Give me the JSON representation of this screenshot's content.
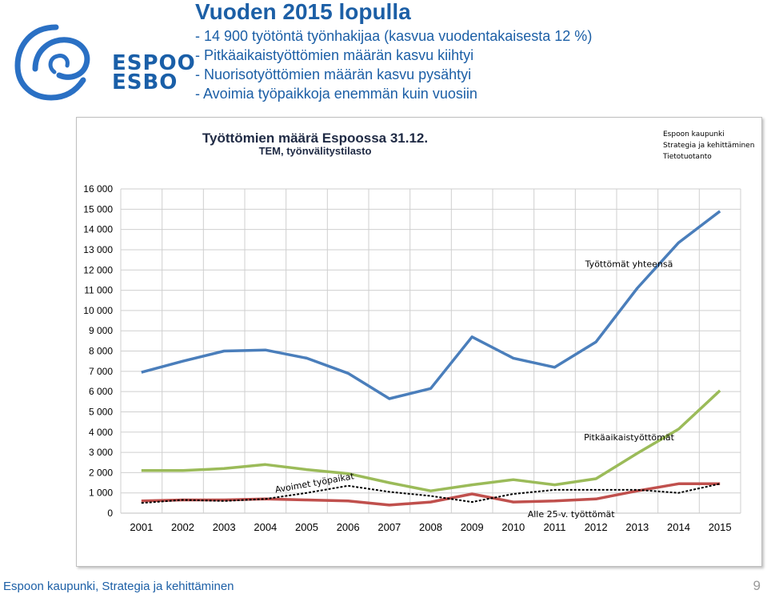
{
  "logo": {
    "line1": "ESPOO",
    "line2": "ESBO"
  },
  "header": {
    "title": "Vuoden 2015 lopulla",
    "bullets": [
      "- 14 900 työtöntä työnhakijaa (kasvua vuodentakaisesta 12 %)",
      "- Pitkäaikaistyöttömien määrän kasvu kiihtyi",
      "- Nuorisotyöttömien määrän kasvu pysähtyi",
      "- Avoimia työpaikkoja enemmän kuin vuosiin"
    ]
  },
  "source": {
    "line1": "Espoon kaupunki",
    "line2": "Strategia ja kehittäminen",
    "line3": "Tietotuotanto"
  },
  "chart_data": {
    "type": "line",
    "title": "Työttömien määrä Espoossa 31.12.",
    "subtitle": "TEM, työnvälitystilasto",
    "xlabel": "",
    "ylabel": "",
    "ylim": [
      0,
      16000
    ],
    "yticks": [
      0,
      1000,
      2000,
      3000,
      4000,
      5000,
      6000,
      7000,
      8000,
      9000,
      10000,
      11000,
      12000,
      13000,
      14000,
      15000,
      16000
    ],
    "ytick_labels": [
      "0",
      "1 000",
      "2 000",
      "3 000",
      "4 000",
      "5 000",
      "6 000",
      "7 000",
      "8 000",
      "9 000",
      "10 000",
      "11 000",
      "12 000",
      "13 000",
      "14 000",
      "15 000",
      "16 000"
    ],
    "categories": [
      "2001",
      "2002",
      "2003",
      "2004",
      "2005",
      "2006",
      "2007",
      "2008",
      "2009",
      "2010",
      "2011",
      "2012",
      "2013",
      "2014",
      "2015"
    ],
    "grid": true,
    "series": [
      {
        "name": "Työttömät yhteensä",
        "color": "#4a7ebb",
        "dash": "",
        "values": [
          6950,
          7500,
          8000,
          8050,
          7650,
          6900,
          5650,
          6150,
          8700,
          7650,
          7200,
          8450,
          11100,
          13350,
          14900
        ]
      },
      {
        "name": "Pitkäaikaistyöttömät",
        "color": "#9bbb59",
        "dash": "",
        "values": [
          2100,
          2100,
          2200,
          2400,
          2150,
          1950,
          1500,
          1100,
          1400,
          1650,
          1400,
          1700,
          2950,
          4150,
          6050
        ]
      },
      {
        "name": "Alle 25-v. työttömät",
        "color": "#c0504d",
        "dash": "",
        "values": [
          600,
          650,
          650,
          700,
          650,
          600,
          400,
          550,
          950,
          550,
          600,
          700,
          1100,
          1450,
          1450
        ]
      },
      {
        "name": "Avoimet työpaikat",
        "color": "#000000",
        "dash": "3,2",
        "values": [
          500,
          650,
          600,
          700,
          1000,
          1350,
          1050,
          850,
          550,
          950,
          1150,
          1150,
          1150,
          1000,
          1450
        ]
      }
    ],
    "annotations": [
      {
        "text": "Työttömät yhteensä",
        "series": 0
      },
      {
        "text": "Pitkäaikaistyöttömät",
        "series": 1
      },
      {
        "text": "Alle 25-v. työttömät",
        "series": 2
      },
      {
        "text": "Avoimet työpaikat",
        "series": 3
      }
    ]
  },
  "footer": {
    "left": "Espoon kaupunki, Strategia ja kehittäminen",
    "page": "9"
  }
}
